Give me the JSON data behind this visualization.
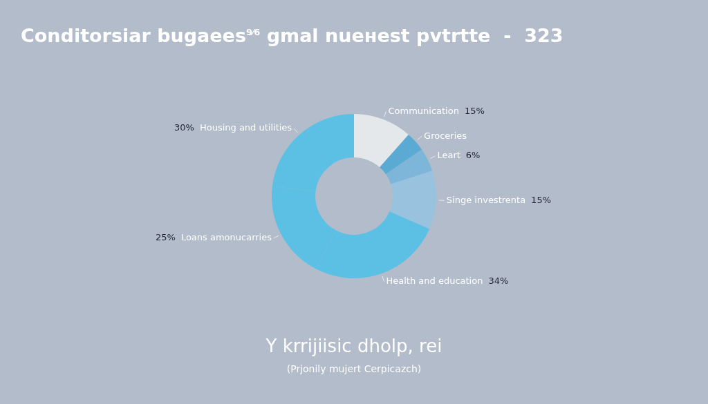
{
  "chart_data": {
    "type": "donut",
    "title": "Conditorsiar bugaees$^{9⁄6}$ gmal nueнest pvtrtte  -  323",
    "subtitle": "Y krrijiisic dholp, rei",
    "annotations": [
      "(Prjonily mujert Cerpicazch)"
    ],
    "categories": [
      "Communication",
      "Groceries",
      "Leart",
      "Singe investrenta",
      "Health and education",
      "Loans amonucarries",
      "Housing and utilities"
    ],
    "values": [
      15,
      5,
      6,
      15,
      34,
      25,
      30
    ],
    "value_labels": [
      "15%",
      null,
      "6%",
      "15%",
      "34%",
      "25%",
      "30%"
    ],
    "colors": [
      "#e4e8ea",
      "#5aaad4",
      "#7db6d8",
      "#98c2de",
      "#5bc0e4",
      "#5bc0e4",
      "#5bc0e4"
    ],
    "legend": false
  }
}
